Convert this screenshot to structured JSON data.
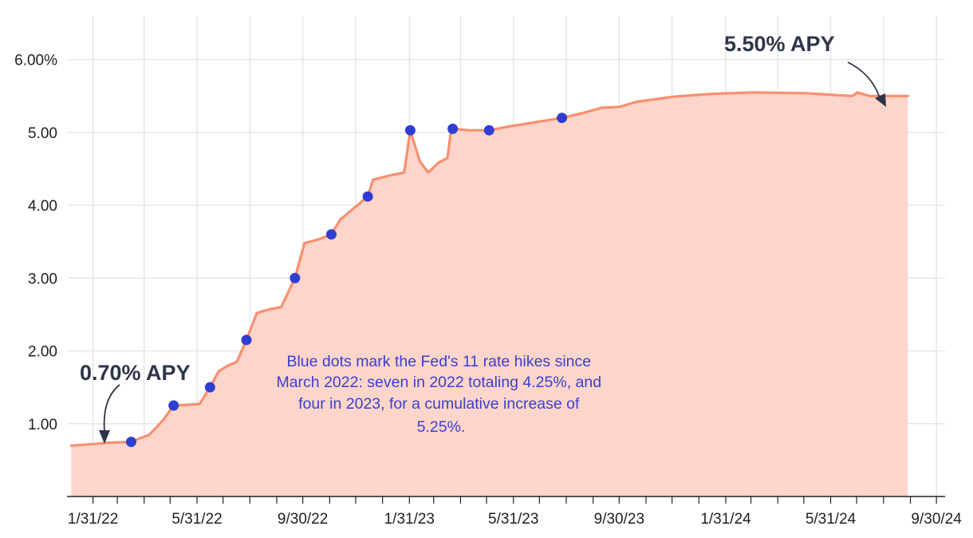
{
  "chart_data": {
    "type": "area",
    "x_type": "date",
    "y_unit": "percent APY",
    "xlim": [
      "2022-01-01",
      "2024-10-10"
    ],
    "ylim": [
      0,
      6.6
    ],
    "x_ticks": [
      {
        "date": "2022-01-31",
        "label": "1/31/22"
      },
      {
        "date": "2022-05-31",
        "label": "5/31/22"
      },
      {
        "date": "2022-09-30",
        "label": "9/30/22"
      },
      {
        "date": "2023-01-31",
        "label": "1/31/23"
      },
      {
        "date": "2023-05-31",
        "label": "5/31/23"
      },
      {
        "date": "2023-09-30",
        "label": "9/30/23"
      },
      {
        "date": "2024-01-31",
        "label": "1/31/24"
      },
      {
        "date": "2024-05-31",
        "label": "5/31/24"
      },
      {
        "date": "2024-09-30",
        "label": "9/30/24"
      }
    ],
    "y_ticks": [
      {
        "value": 1,
        "label": "1.00"
      },
      {
        "value": 2,
        "label": "2.00"
      },
      {
        "value": 3,
        "label": "3.00"
      },
      {
        "value": 4,
        "label": "4.00"
      },
      {
        "value": 5,
        "label": "5.00"
      },
      {
        "value": 6,
        "label": "6.00%"
      }
    ],
    "grid": true,
    "colors": {
      "line": "#f98f6f",
      "fill": "#fdd5ca",
      "marker": "#2f3ed0",
      "grid": "#e4e4e4",
      "axis": "#222222",
      "callout": "#2d3548",
      "note": "#3a3fd0"
    },
    "series": [
      {
        "points": [
          [
            "2022-01-06",
            0.7
          ],
          [
            "2022-02-01",
            0.72
          ],
          [
            "2022-02-20",
            0.74
          ],
          [
            "2022-03-16",
            0.75
          ],
          [
            "2022-04-06",
            0.85
          ],
          [
            "2022-04-22",
            1.05
          ],
          [
            "2022-05-04",
            1.25
          ],
          [
            "2022-05-20",
            1.26
          ],
          [
            "2022-06-03",
            1.27
          ],
          [
            "2022-06-15",
            1.5
          ],
          [
            "2022-06-25",
            1.72
          ],
          [
            "2022-07-06",
            1.8
          ],
          [
            "2022-07-16",
            1.85
          ],
          [
            "2022-07-27",
            2.15
          ],
          [
            "2022-08-08",
            2.52
          ],
          [
            "2022-08-22",
            2.57
          ],
          [
            "2022-09-05",
            2.6
          ],
          [
            "2022-09-21",
            3.0
          ],
          [
            "2022-10-02",
            3.48
          ],
          [
            "2022-10-18",
            3.53
          ],
          [
            "2022-11-02",
            3.6
          ],
          [
            "2022-11-12",
            3.8
          ],
          [
            "2022-11-25",
            3.93
          ],
          [
            "2022-12-14",
            4.12
          ],
          [
            "2022-12-20",
            4.35
          ],
          [
            "2023-01-05",
            4.4
          ],
          [
            "2023-01-25",
            4.45
          ],
          [
            "2023-02-01",
            5.03
          ],
          [
            "2023-02-12",
            4.6
          ],
          [
            "2023-02-22",
            4.45
          ],
          [
            "2023-03-05",
            4.58
          ],
          [
            "2023-03-16",
            4.65
          ],
          [
            "2023-03-20",
            5.03
          ],
          [
            "2023-03-22",
            5.05
          ],
          [
            "2023-04-10",
            5.03
          ],
          [
            "2023-05-03",
            5.03
          ],
          [
            "2023-05-25",
            5.08
          ],
          [
            "2023-06-15",
            5.12
          ],
          [
            "2023-07-26",
            5.2
          ],
          [
            "2023-08-20",
            5.27
          ],
          [
            "2023-09-10",
            5.34
          ],
          [
            "2023-09-30",
            5.35
          ],
          [
            "2023-10-20",
            5.42
          ],
          [
            "2023-12-01",
            5.49
          ],
          [
            "2024-01-15",
            5.53
          ],
          [
            "2024-03-01",
            5.55
          ],
          [
            "2024-05-01",
            5.54
          ],
          [
            "2024-06-25",
            5.5
          ],
          [
            "2024-07-01",
            5.55
          ],
          [
            "2024-07-15",
            5.5
          ],
          [
            "2024-08-28",
            5.5
          ]
        ]
      }
    ],
    "markers": [
      [
        "2022-03-16",
        0.75
      ],
      [
        "2022-05-04",
        1.25
      ],
      [
        "2022-06-15",
        1.5
      ],
      [
        "2022-07-27",
        2.15
      ],
      [
        "2022-09-21",
        3.0
      ],
      [
        "2022-11-02",
        3.6
      ],
      [
        "2022-12-14",
        4.12
      ],
      [
        "2023-02-01",
        5.03
      ],
      [
        "2023-03-22",
        5.05
      ],
      [
        "2023-05-03",
        5.03
      ],
      [
        "2023-07-26",
        5.2
      ]
    ]
  },
  "annotations": {
    "start_label": "0.70% APY",
    "end_label": "5.50% APY",
    "note_lines": [
      "Blue dots mark the Fed's 11 rate hikes since",
      "March 2022: seven in 2022 totaling 4.25%, and",
      "four in 2023, for a cumulative increase of",
      "5.25%."
    ]
  }
}
